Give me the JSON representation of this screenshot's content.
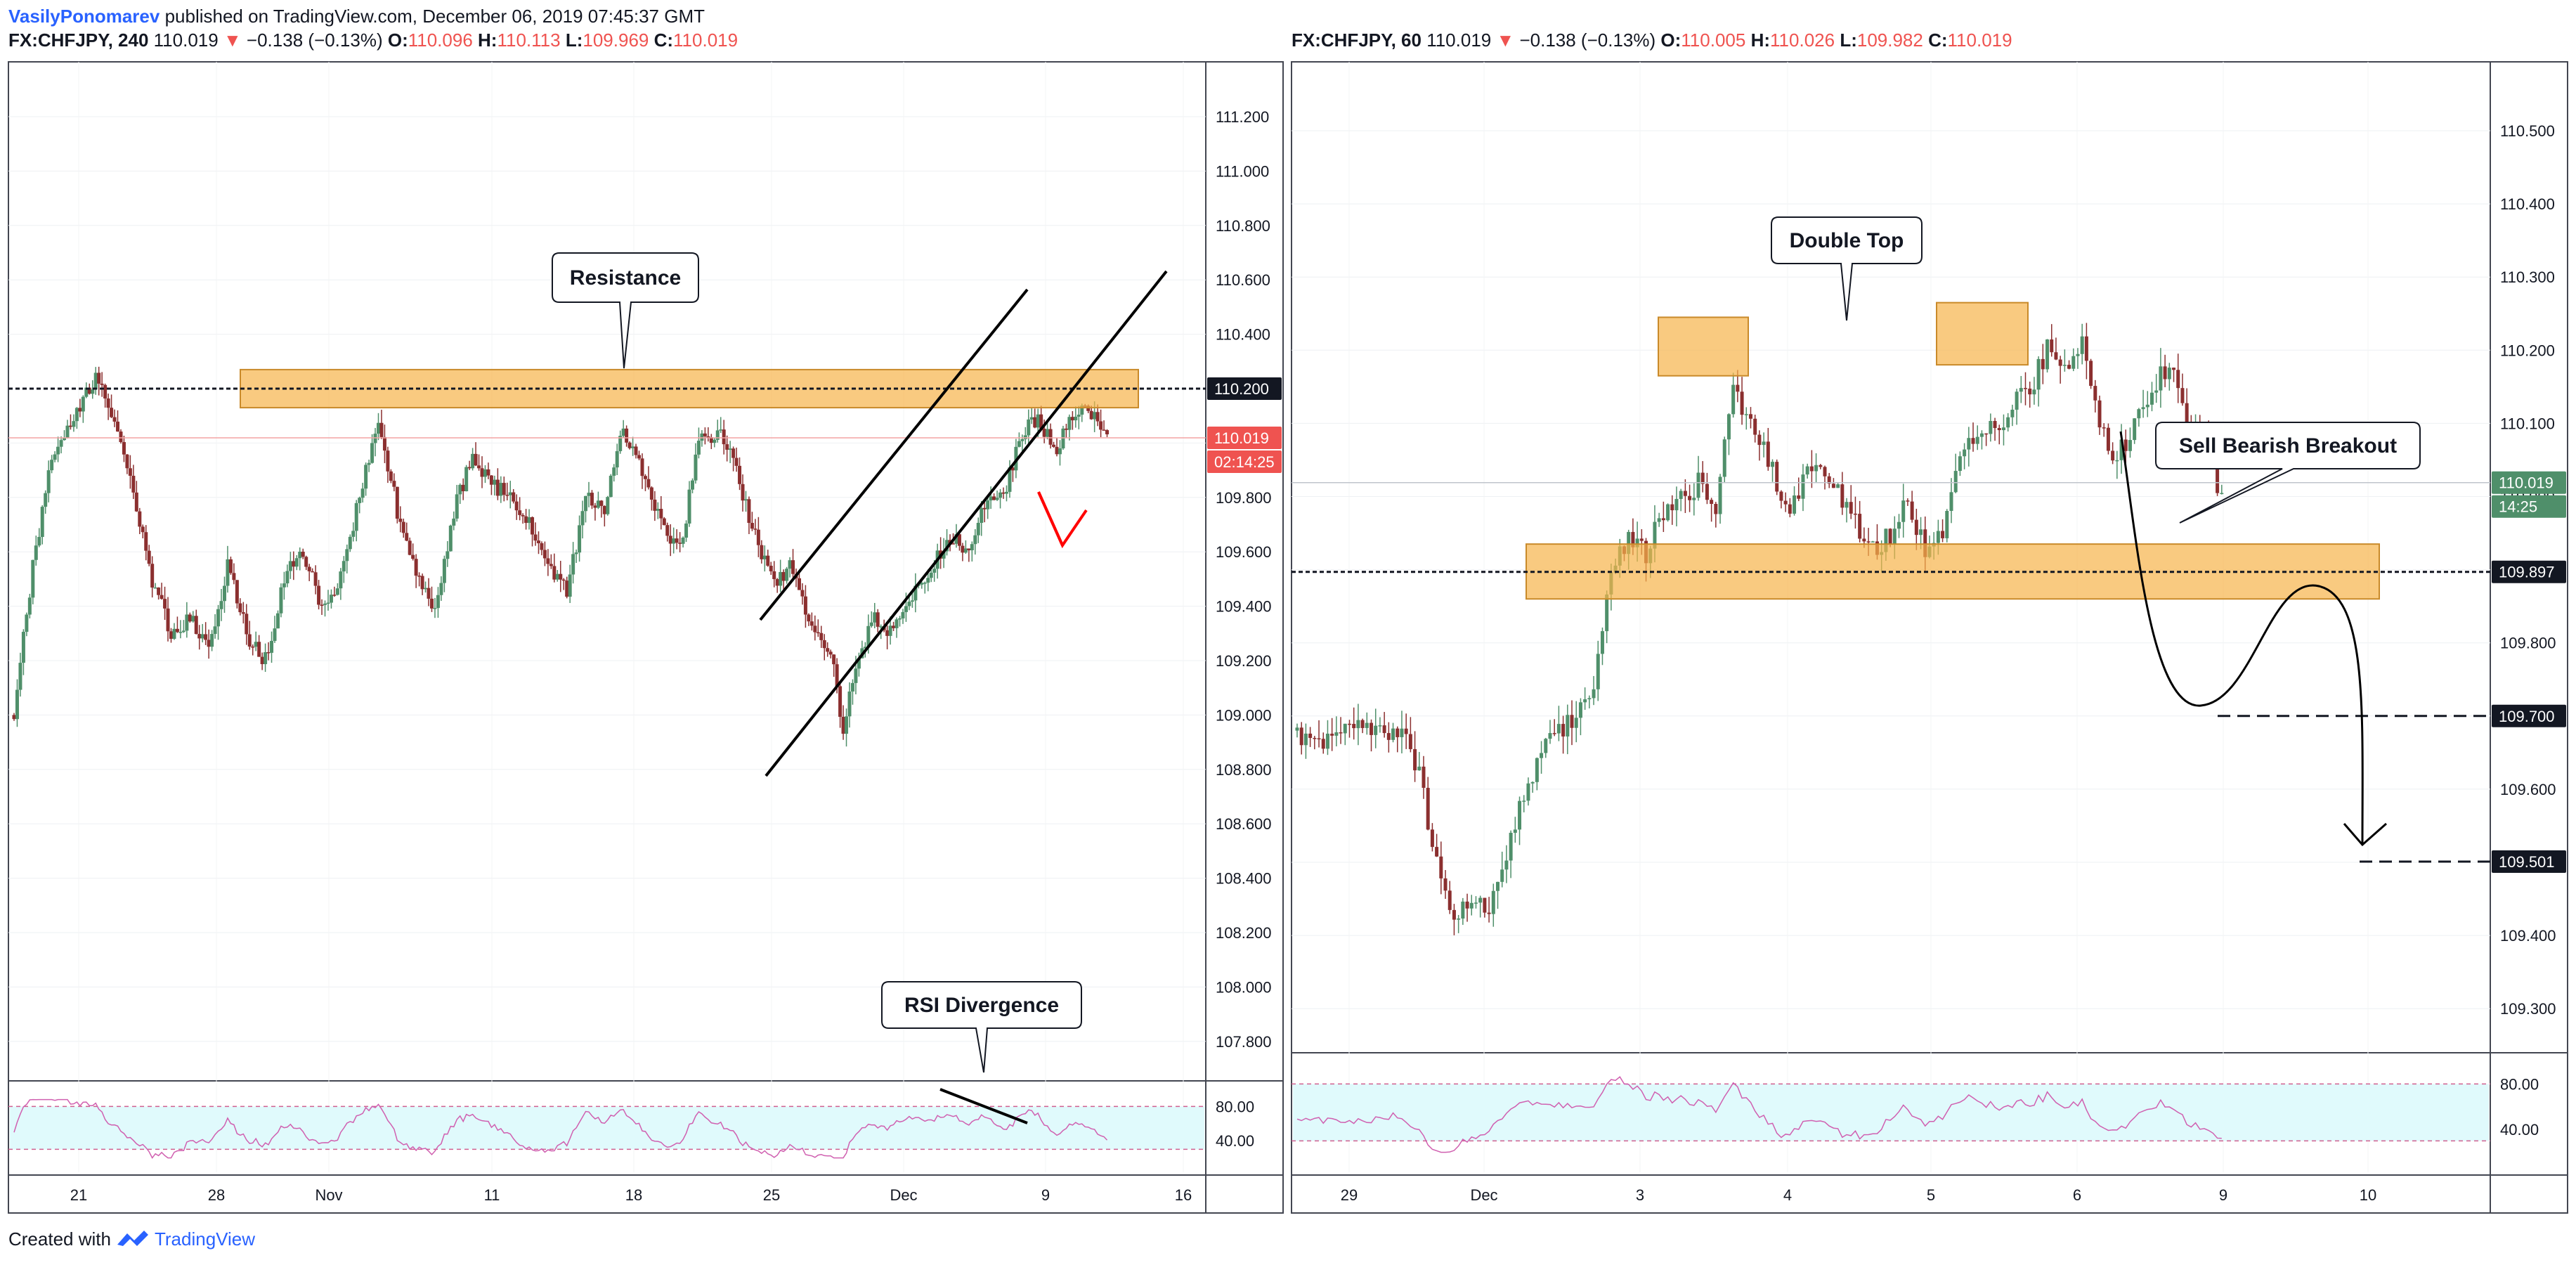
{
  "header": {
    "author": "VasilyPonomarev",
    "published": "published on TradingView.com, December 06, 2019 07:45:37 GMT"
  },
  "footer": {
    "created_with": "Created with",
    "brand": "TradingView"
  },
  "colors": {
    "bull": "#4f8f6a",
    "bear": "#8b2f2f",
    "zone": "#f7b34a",
    "zone_border": "#c98a2a",
    "rsi_fill": "#e0fafc",
    "rsi_line": "#d060b0",
    "up": "#ef5350",
    "axis_dark": "#131722"
  },
  "panels": [
    {
      "symbol": "FX:CHFJPY, 240",
      "last": "110.019",
      "change": "−0.138 (−0.13%)",
      "o": "110.096",
      "h": "110.113",
      "l": "109.969",
      "c": "110.019",
      "y_ticks": [
        "111.200",
        "111.000",
        "110.800",
        "110.600",
        "110.400",
        "110.200",
        "110.000",
        "109.800",
        "109.600",
        "109.400",
        "109.200",
        "109.000",
        "108.800",
        "108.600",
        "108.400",
        "108.200",
        "108.000",
        "107.800"
      ],
      "rsi_ticks": [
        "80.00",
        "40.00"
      ],
      "x_ticks": [
        "21",
        "28",
        "Nov",
        "11",
        "18",
        "25",
        "Dec",
        "9",
        "16"
      ],
      "badges": {
        "level": "110.200",
        "price": "110.019",
        "countdown": "02:14:25"
      },
      "callouts": {
        "resistance": "Resistance",
        "rsi": "RSI Divergence"
      }
    },
    {
      "symbol": "FX:CHFJPY, 60",
      "last": "110.019",
      "change": "−0.138 (−0.13%)",
      "o": "110.005",
      "h": "110.026",
      "l": "109.982",
      "c": "110.019",
      "y_ticks": [
        "110.500",
        "110.400",
        "110.300",
        "110.200",
        "110.100",
        "110.000",
        "109.900",
        "109.800",
        "109.700",
        "109.600",
        "109.500",
        "109.400",
        "109.300"
      ],
      "rsi_ticks": [
        "80.00",
        "40.00"
      ],
      "x_ticks": [
        "29",
        "Dec",
        "3",
        "4",
        "5",
        "6",
        "9",
        "10"
      ],
      "badges": {
        "price": "110.019",
        "countdown": "14:25",
        "b1": "109.897",
        "b2": "109.700",
        "b3": "109.501"
      },
      "callouts": {
        "double_top": "Double Top",
        "sell": "Sell Bearish Breakout"
      }
    }
  ],
  "chart_data": [
    {
      "type": "candlestick",
      "title": "FX:CHFJPY, 240",
      "x_labels": [
        "21",
        "28",
        "Nov",
        "11",
        "18",
        "25",
        "Dec",
        "9",
        "16"
      ],
      "ylim": [
        107.7,
        111.4
      ],
      "grid": true,
      "price_path": [
        [
          0,
          109.0
        ],
        [
          6,
          109.55
        ],
        [
          12,
          109.95
        ],
        [
          20,
          110.1
        ],
        [
          26,
          110.25
        ],
        [
          32,
          110.08
        ],
        [
          38,
          109.8
        ],
        [
          44,
          109.5
        ],
        [
          50,
          109.3
        ],
        [
          56,
          109.35
        ],
        [
          62,
          109.25
        ],
        [
          68,
          109.55
        ],
        [
          74,
          109.3
        ],
        [
          80,
          109.2
        ],
        [
          86,
          109.5
        ],
        [
          92,
          109.6
        ],
        [
          98,
          109.4
        ],
        [
          104,
          109.5
        ],
        [
          110,
          109.8
        ],
        [
          116,
          110.1
        ],
        [
          122,
          109.75
        ],
        [
          128,
          109.5
        ],
        [
          134,
          109.4
        ],
        [
          140,
          109.75
        ],
        [
          146,
          109.95
        ],
        [
          152,
          109.85
        ],
        [
          158,
          109.8
        ],
        [
          164,
          109.7
        ],
        [
          170,
          109.55
        ],
        [
          176,
          109.45
        ],
        [
          182,
          109.8
        ],
        [
          188,
          109.75
        ],
        [
          194,
          110.05
        ],
        [
          200,
          109.9
        ],
        [
          206,
          109.7
        ],
        [
          212,
          109.6
        ],
        [
          218,
          110.0
        ],
        [
          224,
          110.05
        ],
        [
          230,
          109.9
        ],
        [
          236,
          109.65
        ],
        [
          242,
          109.5
        ],
        [
          248,
          109.55
        ],
        [
          254,
          109.3
        ],
        [
          260,
          109.25
        ],
        [
          264,
          108.95
        ],
        [
          268,
          109.2
        ],
        [
          274,
          109.35
        ],
        [
          280,
          109.3
        ],
        [
          286,
          109.45
        ],
        [
          292,
          109.55
        ],
        [
          298,
          109.65
        ],
        [
          304,
          109.6
        ],
        [
          310,
          109.8
        ],
        [
          316,
          109.85
        ],
        [
          320,
          110.0
        ],
        [
          324,
          110.1
        ],
        [
          328,
          110.05
        ],
        [
          332,
          109.95
        ],
        [
          336,
          110.1
        ],
        [
          340,
          110.12
        ],
        [
          344,
          110.1
        ],
        [
          348,
          110.02
        ]
      ],
      "rsi_overbought": 80,
      "rsi_oversold": 30,
      "annotations": [
        "Resistance",
        "RSI Divergence"
      ],
      "horizontal_levels": [
        110.2
      ],
      "last_price": 110.019
    },
    {
      "type": "candlestick",
      "title": "FX:CHFJPY, 60",
      "x_labels": [
        "29",
        "Dec",
        "3",
        "4",
        "5",
        "6",
        "9",
        "10"
      ],
      "ylim": [
        109.25,
        110.55
      ],
      "grid": true,
      "price_path": [
        [
          0,
          109.68
        ],
        [
          6,
          109.66
        ],
        [
          12,
          109.7
        ],
        [
          18,
          109.67
        ],
        [
          24,
          109.68
        ],
        [
          28,
          109.62
        ],
        [
          32,
          109.5
        ],
        [
          36,
          109.42
        ],
        [
          40,
          109.45
        ],
        [
          44,
          109.44
        ],
        [
          48,
          109.5
        ],
        [
          52,
          109.6
        ],
        [
          56,
          109.65
        ],
        [
          60,
          109.68
        ],
        [
          64,
          109.7
        ],
        [
          68,
          109.75
        ],
        [
          72,
          109.9
        ],
        [
          76,
          109.95
        ],
        [
          80,
          109.92
        ],
        [
          84,
          109.98
        ],
        [
          88,
          110.0
        ],
        [
          92,
          110.02
        ],
        [
          96,
          109.98
        ],
        [
          100,
          110.15
        ],
        [
          104,
          110.1
        ],
        [
          108,
          110.05
        ],
        [
          112,
          109.98
        ],
        [
          116,
          110.02
        ],
        [
          120,
          110.05
        ],
        [
          124,
          110.0
        ],
        [
          128,
          109.96
        ],
        [
          132,
          109.93
        ],
        [
          136,
          109.95
        ],
        [
          140,
          110.0
        ],
        [
          144,
          109.92
        ],
        [
          148,
          109.95
        ],
        [
          152,
          110.05
        ],
        [
          156,
          110.08
        ],
        [
          160,
          110.1
        ],
        [
          164,
          110.12
        ],
        [
          168,
          110.15
        ],
        [
          172,
          110.2
        ],
        [
          176,
          110.18
        ],
        [
          180,
          110.22
        ],
        [
          184,
          110.1
        ],
        [
          188,
          110.05
        ],
        [
          192,
          110.1
        ],
        [
          196,
          110.15
        ],
        [
          200,
          110.18
        ],
        [
          204,
          110.1
        ],
        [
          208,
          110.08
        ],
        [
          212,
          110.0
        ]
      ],
      "rsi_overbought": 80,
      "rsi_oversold": 30,
      "annotations": [
        "Double Top",
        "Sell Bearish Breakout"
      ],
      "horizontal_levels": [
        109.897,
        109.7,
        109.501
      ],
      "last_price": 110.019
    }
  ]
}
